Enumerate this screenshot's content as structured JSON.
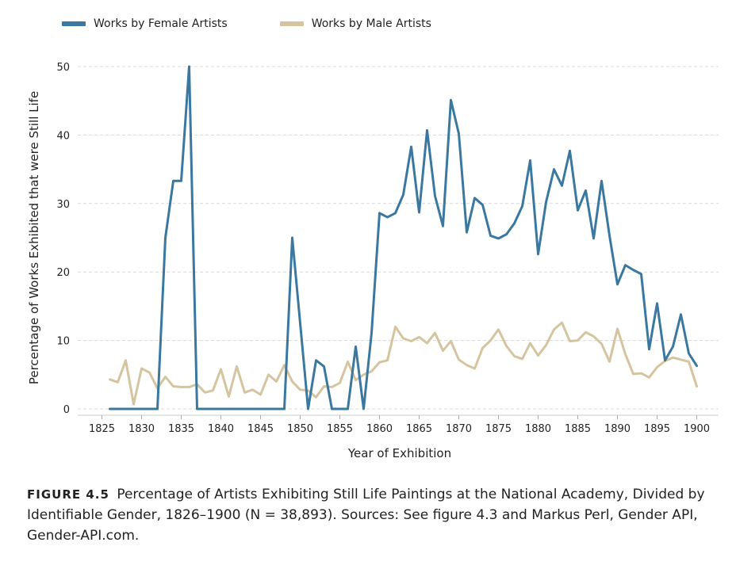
{
  "chart_data": {
    "type": "line",
    "title": "",
    "xlabel": "Year of Exhibition",
    "ylabel": "Percentage of Works Exhibited that were Still Life",
    "xlim": [
      1826,
      1900
    ],
    "ylim": [
      0,
      50
    ],
    "xticks": [
      1825,
      1830,
      1835,
      1840,
      1845,
      1850,
      1855,
      1860,
      1865,
      1870,
      1875,
      1880,
      1885,
      1890,
      1895,
      1900
    ],
    "yticks": [
      0,
      10,
      20,
      30,
      40,
      50
    ],
    "grid": "horizontal dashed",
    "legend_position": "top-left",
    "x": [
      1826,
      1827,
      1828,
      1829,
      1830,
      1831,
      1832,
      1833,
      1834,
      1835,
      1836,
      1837,
      1838,
      1839,
      1840,
      1841,
      1842,
      1843,
      1844,
      1845,
      1846,
      1847,
      1848,
      1849,
      1850,
      1851,
      1852,
      1853,
      1854,
      1855,
      1856,
      1857,
      1858,
      1859,
      1860,
      1861,
      1862,
      1863,
      1864,
      1865,
      1866,
      1867,
      1868,
      1869,
      1870,
      1871,
      1872,
      1873,
      1874,
      1875,
      1876,
      1877,
      1878,
      1879,
      1880,
      1881,
      1882,
      1883,
      1884,
      1885,
      1886,
      1887,
      1888,
      1889,
      1890,
      1891,
      1892,
      1893,
      1894,
      1895,
      1896,
      1897,
      1898,
      1899,
      1900
    ],
    "series": [
      {
        "name": "Works by Female Artists",
        "color": "#3a78a0",
        "values": [
          0,
          0,
          0,
          0,
          0,
          0,
          0,
          25,
          33.3,
          33.3,
          50,
          0,
          0,
          0,
          0,
          0,
          0,
          0,
          0,
          0,
          0,
          0,
          0,
          25,
          12.5,
          0,
          7.1,
          6.2,
          0,
          0,
          0,
          9.1,
          0,
          11.1,
          28.6,
          28,
          28.6,
          31.3,
          38.3,
          28.7,
          40.7,
          31.1,
          26.7,
          45.1,
          40.2,
          25.8,
          30.8,
          29.8,
          25.3,
          24.9,
          25.5,
          27.1,
          29.6,
          36.3,
          22.6,
          30.2,
          35,
          32.6,
          37.7,
          29,
          31.9,
          24.9,
          33.3,
          25.3,
          18.2,
          21,
          20.3,
          19.7,
          8.7,
          15.4,
          7.1,
          9.1,
          13.8,
          8.1,
          6.3
        ]
      },
      {
        "name": "Works by Male Artists",
        "color": "#d4c5a0",
        "values": [
          4.3,
          3.9,
          7.1,
          0.7,
          5.9,
          5.3,
          3,
          4.7,
          3.3,
          3.2,
          3.2,
          3.6,
          2.4,
          2.7,
          5.8,
          1.8,
          6.2,
          2.4,
          2.8,
          2.1,
          5,
          4,
          6.4,
          4,
          2.8,
          2.7,
          1.7,
          3.3,
          3.2,
          3.8,
          6.9,
          4.2,
          5,
          5.5,
          6.8,
          7.1,
          12,
          10.3,
          9.9,
          10.5,
          9.6,
          11.1,
          8.5,
          9.9,
          7.2,
          6.4,
          5.9,
          8.9,
          10,
          11.6,
          9.2,
          7.7,
          7.3,
          9.6,
          7.8,
          9.3,
          11.6,
          12.6,
          9.9,
          10,
          11.2,
          10.6,
          9.5,
          6.9,
          11.7,
          8,
          5.1,
          5.2,
          4.6,
          6.1,
          7,
          7.5,
          7.2,
          6.9,
          3.3
        ]
      }
    ]
  },
  "caption": {
    "label": "FIGURE 4.5",
    "text": "Percentage of Artists Exhibiting Still Life Paintings at the National Academy, Divided by Identifiable Gender, 1826–1900 (N = 38,893). Sources: See figure 4.3 and Markus Perl, Gender API, Gender-API.com."
  }
}
